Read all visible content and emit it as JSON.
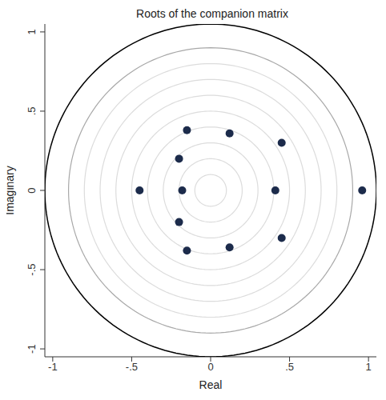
{
  "chart_data": {
    "type": "scatter",
    "title": "Roots of the companion matrix",
    "x_label": "Real",
    "y_label": "Imaginary",
    "x": [
      0.96,
      0.41,
      -0.18,
      -0.45,
      0.45,
      0.45,
      0.12,
      0.12,
      -0.15,
      -0.15,
      -0.2,
      -0.2
    ],
    "values": [
      0,
      0,
      0,
      0,
      0.3,
      -0.3,
      0.36,
      -0.36,
      0.38,
      -0.38,
      0.2,
      -0.2
    ],
    "color": "#1c2b4b",
    "marker": "circle",
    "circles": [
      0.1,
      0.2,
      0.3,
      0.4,
      0.5,
      0.6,
      0.7,
      0.8,
      0.9,
      1.05
    ],
    "xlim": [
      -1.05,
      1.05
    ],
    "ylim": [
      -1.05,
      1.05
    ],
    "xticks": [
      -1,
      {
        "value": -0.5,
        "label": "-.5"
      },
      0,
      {
        "value": 0.5,
        "label": ".5"
      },
      1
    ],
    "yticks": [
      -1,
      {
        "value": -0.5,
        "label": "-.5"
      },
      0,
      {
        "value": 0.5,
        "label": ".5"
      },
      1
    ],
    "grid": true
  }
}
